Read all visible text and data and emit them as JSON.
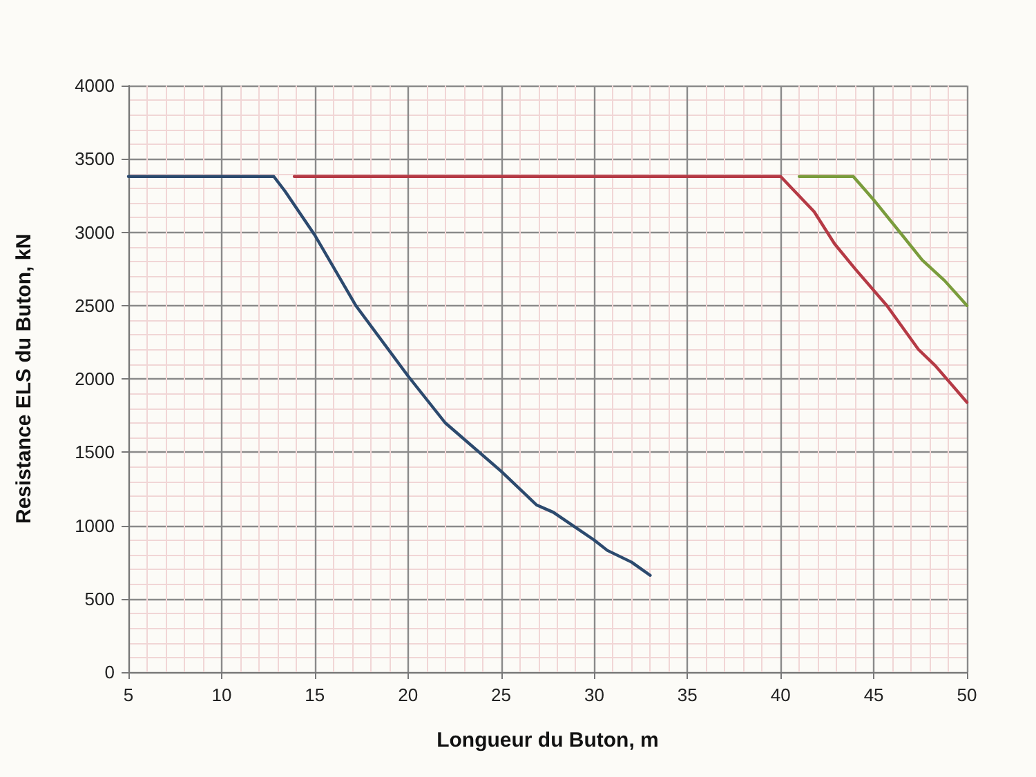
{
  "chart_data": {
    "type": "line",
    "xlabel": "Longueur du Buton, m",
    "ylabel": "Resistance ELS du Buton, kN",
    "xlim": [
      5,
      50
    ],
    "xticks": [
      5,
      10,
      15,
      20,
      25,
      30,
      35,
      40,
      45,
      50
    ],
    "ylim": [
      0,
      4000
    ],
    "yticks": [
      0,
      500,
      1000,
      1500,
      2000,
      2500,
      3000,
      3500,
      4000
    ],
    "grid": true,
    "marker": "none",
    "line_style": "solid",
    "series": [
      {
        "color": "#2c4a6e",
        "x": [
          5,
          12.8,
          13.4,
          15,
          17.2,
          20,
          22,
          25,
          26.9,
          27.8,
          30,
          30.7,
          32,
          33
        ],
        "values": [
          3380,
          3380,
          3280,
          2980,
          2500,
          2020,
          1700,
          1370,
          1140,
          1090,
          900,
          830,
          750,
          660
        ]
      },
      {
        "color": "#b53a45",
        "x": [
          13.9,
          40,
          41.8,
          42.9,
          44,
          45.7,
          47.4,
          48.3,
          50
        ],
        "values": [
          3380,
          3380,
          3140,
          2920,
          2750,
          2500,
          2200,
          2090,
          1840
        ]
      },
      {
        "color": "#7a9c3c",
        "x": [
          41,
          43.9,
          45,
          46.4,
          47.6,
          48.8,
          50
        ],
        "values": [
          3380,
          3380,
          3220,
          3000,
          2810,
          2670,
          2500
        ]
      }
    ]
  }
}
